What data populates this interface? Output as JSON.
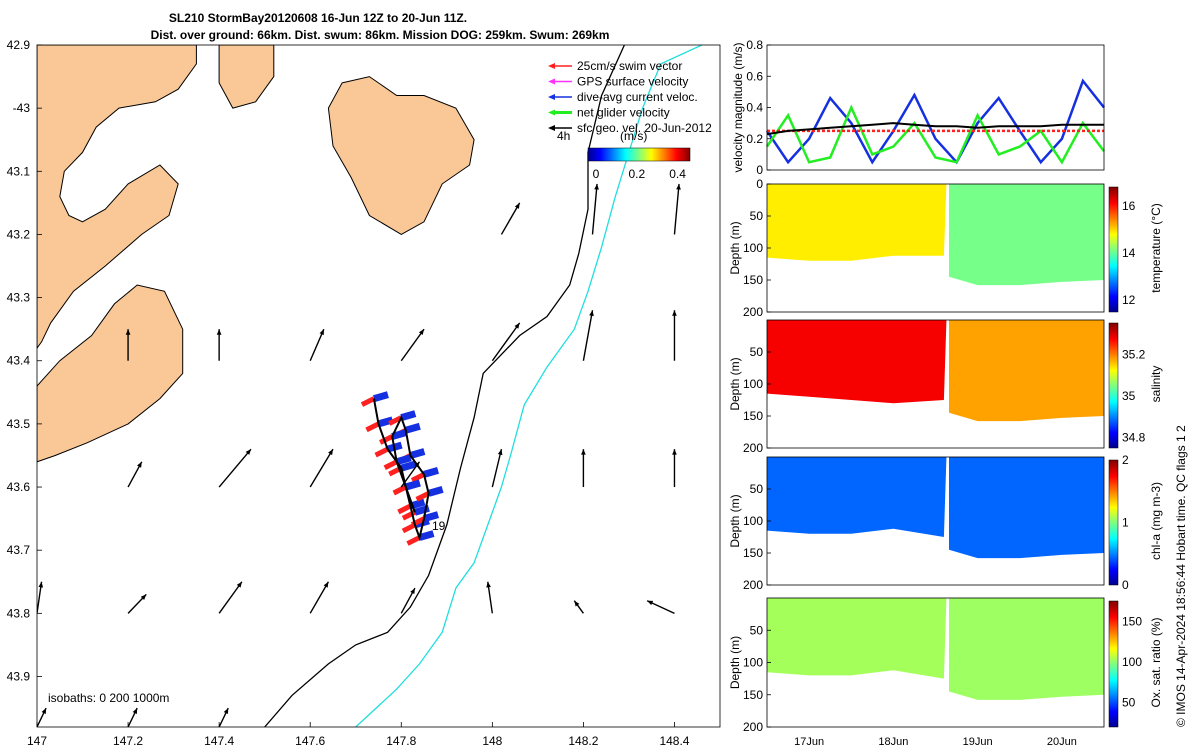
{
  "header": {
    "title_line1": "SL210 StormBay20120608 16-Jun 12Z to 20-Jun 11Z.",
    "title_line2": "Dist. over ground: 66km. Dist. swum: 86km. Mission DOG: 259km. Swum: 269km"
  },
  "colors": {
    "land": "#f9c896",
    "sea": "#ffffff",
    "isobath_200": "#000000",
    "isobath_1000": "#22dede",
    "swim_vector": "#ff2020",
    "gps_velocity": "#ff33ff",
    "dive_avg": "#1530e0",
    "net_velocity": "#22ee22",
    "sfc_geo": "#000000"
  },
  "map": {
    "type": "map",
    "xlim": [
      147.0,
      148.5
    ],
    "ylim": [
      -43.98,
      -42.9
    ],
    "xticks": [
      147,
      147.2,
      147.4,
      147.6,
      147.8,
      148,
      148.2,
      148.4
    ],
    "xtick_labels": [
      "147",
      "147.2",
      "147.4",
      "147.6",
      "147.8",
      "148",
      "148.2",
      "148.4"
    ],
    "yticks": [
      -42.9,
      -43,
      -43.1,
      -43.2,
      -43.3,
      -43.4,
      -43.5,
      -43.6,
      -43.7,
      -43.8,
      -43.9
    ],
    "ytick_labels": [
      "42.9",
      "-43",
      "43.1",
      "43.2",
      "43.3",
      "43.4",
      "43.5",
      "43.6",
      "43.7",
      "43.8",
      "43.9"
    ],
    "legend": {
      "position": "top-right",
      "items": [
        {
          "label": "25cm/s swim vector",
          "color": "#ff2020"
        },
        {
          "label": "GPS surface velocity",
          "color": "#ff33ff"
        },
        {
          "label": "dive-avg current veloc.",
          "color": "#1530e0"
        },
        {
          "label": "net glider velocity",
          "color": "#22ee22"
        },
        {
          "label": "sfc geo. vel. 20-Jun-2012",
          "color": "#000000"
        }
      ],
      "time_label": "4h"
    },
    "colorbar": {
      "label": "(m/s)",
      "ticks": [
        "0",
        "0.2",
        "0.4"
      ],
      "range": [
        0,
        0.5
      ]
    },
    "isobath_label": "isobaths: 0   200  1000m",
    "track_label": "19",
    "isobath_200": [
      [
        147.5,
        -43.98
      ],
      [
        147.56,
        -43.93
      ],
      [
        147.64,
        -43.88
      ],
      [
        147.7,
        -43.85
      ],
      [
        147.77,
        -43.83
      ],
      [
        147.82,
        -43.79
      ],
      [
        147.86,
        -43.74
      ],
      [
        147.9,
        -43.66
      ],
      [
        147.93,
        -43.57
      ],
      [
        147.96,
        -43.49
      ],
      [
        147.98,
        -43.42
      ],
      [
        148.06,
        -43.36
      ],
      [
        148.12,
        -43.33
      ],
      [
        148.17,
        -43.28
      ],
      [
        148.19,
        -43.23
      ],
      [
        148.21,
        -43.16
      ],
      [
        148.21,
        -43.07
      ],
      [
        148.24,
        -42.98
      ],
      [
        148.29,
        -42.9
      ]
    ],
    "isobath_1000": [
      [
        147.7,
        -43.98
      ],
      [
        147.79,
        -43.92
      ],
      [
        147.84,
        -43.88
      ],
      [
        147.89,
        -43.83
      ],
      [
        147.92,
        -43.76
      ],
      [
        147.96,
        -43.72
      ],
      [
        147.99,
        -43.66
      ],
      [
        148.02,
        -43.6
      ],
      [
        148.04,
        -43.55
      ],
      [
        148.07,
        -43.47
      ],
      [
        148.12,
        -43.41
      ],
      [
        148.18,
        -43.35
      ],
      [
        148.21,
        -43.29
      ],
      [
        148.24,
        -43.22
      ],
      [
        148.27,
        -43.14
      ],
      [
        148.3,
        -43.07
      ],
      [
        148.33,
        -43.0
      ],
      [
        148.37,
        -42.93
      ],
      [
        148.46,
        -42.9
      ]
    ],
    "land_polygons": [
      [
        [
          147.0,
          -42.9
        ],
        [
          147.35,
          -42.9
        ],
        [
          147.35,
          -42.93
        ],
        [
          147.31,
          -42.97
        ],
        [
          147.26,
          -42.99
        ],
        [
          147.18,
          -43.0
        ],
        [
          147.13,
          -43.03
        ],
        [
          147.1,
          -43.07
        ],
        [
          147.06,
          -43.1
        ],
        [
          147.05,
          -43.14
        ],
        [
          147.07,
          -43.17
        ],
        [
          147.1,
          -43.18
        ],
        [
          147.15,
          -43.16
        ],
        [
          147.2,
          -43.12
        ],
        [
          147.27,
          -43.09
        ],
        [
          147.31,
          -43.12
        ],
        [
          147.29,
          -43.17
        ],
        [
          147.23,
          -43.2
        ],
        [
          147.15,
          -43.25
        ],
        [
          147.08,
          -43.29
        ],
        [
          147.03,
          -43.34
        ],
        [
          147.01,
          -43.37
        ],
        [
          147.0,
          -43.38
        ]
      ],
      [
        [
          147.0,
          -43.44
        ],
        [
          147.05,
          -43.4
        ],
        [
          147.12,
          -43.36
        ],
        [
          147.17,
          -43.31
        ],
        [
          147.22,
          -43.28
        ],
        [
          147.28,
          -43.29
        ],
        [
          147.32,
          -43.35
        ],
        [
          147.32,
          -43.42
        ],
        [
          147.27,
          -43.46
        ],
        [
          147.2,
          -43.5
        ],
        [
          147.11,
          -43.53
        ],
        [
          147.04,
          -43.55
        ],
        [
          147.0,
          -43.56
        ]
      ],
      [
        [
          147.4,
          -42.9
        ],
        [
          147.52,
          -42.9
        ],
        [
          147.52,
          -42.95
        ],
        [
          147.48,
          -42.99
        ],
        [
          147.43,
          -43.0
        ],
        [
          147.4,
          -42.96
        ]
      ],
      [
        [
          147.67,
          -42.96
        ],
        [
          147.73,
          -42.95
        ],
        [
          147.79,
          -42.98
        ],
        [
          147.85,
          -42.98
        ],
        [
          147.92,
          -43.0
        ],
        [
          147.96,
          -43.05
        ],
        [
          147.95,
          -43.09
        ],
        [
          147.89,
          -43.12
        ],
        [
          147.85,
          -43.18
        ],
        [
          147.8,
          -43.2
        ],
        [
          147.73,
          -43.17
        ],
        [
          147.69,
          -43.11
        ],
        [
          147.65,
          -43.06
        ],
        [
          147.64,
          -43.0
        ]
      ]
    ],
    "quivers": [
      [
        147.2,
        -43.4,
        0.0,
        0.05
      ],
      [
        147.4,
        -43.4,
        0.0,
        0.05
      ],
      [
        147.6,
        -43.4,
        0.03,
        0.05
      ],
      [
        147.8,
        -43.4,
        0.05,
        0.05
      ],
      [
        148.0,
        -43.4,
        0.06,
        0.06
      ],
      [
        148.2,
        -43.4,
        0.02,
        0.08
      ],
      [
        148.4,
        -43.4,
        0.0,
        0.08
      ],
      [
        148.02,
        -43.2,
        0.04,
        0.05
      ],
      [
        148.22,
        -43.2,
        0.01,
        0.08
      ],
      [
        148.4,
        -43.2,
        0.01,
        0.08
      ],
      [
        147.2,
        -43.6,
        0.03,
        0.04
      ],
      [
        147.4,
        -43.6,
        0.07,
        0.06
      ],
      [
        147.6,
        -43.6,
        0.05,
        0.06
      ],
      [
        147.8,
        -43.6,
        0.04,
        0.04
      ],
      [
        148.0,
        -43.6,
        0.02,
        0.06
      ],
      [
        148.2,
        -43.6,
        0.0,
        0.06
      ],
      [
        148.4,
        -43.6,
        0.0,
        0.06
      ],
      [
        147.0,
        -43.8,
        0.01,
        0.05
      ],
      [
        147.2,
        -43.8,
        0.04,
        0.03
      ],
      [
        147.4,
        -43.8,
        0.05,
        0.05
      ],
      [
        147.6,
        -43.8,
        0.04,
        0.05
      ],
      [
        147.8,
        -43.8,
        0.03,
        0.04
      ],
      [
        148.0,
        -43.8,
        -0.01,
        0.05
      ],
      [
        148.2,
        -43.8,
        -0.02,
        0.02
      ],
      [
        148.4,
        -43.8,
        -0.06,
        0.02
      ],
      [
        147.2,
        -43.98,
        0.02,
        0.03
      ],
      [
        147.4,
        -43.98,
        0.02,
        0.03
      ],
      [
        147.0,
        -43.98,
        0.02,
        0.03
      ]
    ],
    "track": [
      [
        147.74,
        -43.46
      ],
      [
        147.75,
        -43.5
      ],
      [
        147.77,
        -43.54
      ],
      [
        147.8,
        -43.57
      ],
      [
        147.81,
        -43.6
      ],
      [
        147.82,
        -43.63
      ],
      [
        147.83,
        -43.66
      ],
      [
        147.84,
        -43.68
      ],
      [
        147.85,
        -43.65
      ],
      [
        147.86,
        -43.61
      ],
      [
        147.85,
        -43.58
      ],
      [
        147.82,
        -43.55
      ],
      [
        147.81,
        -43.51
      ],
      [
        147.8,
        -43.49
      ],
      [
        147.78,
        -43.52
      ],
      [
        147.79,
        -43.56
      ],
      [
        147.81,
        -43.6
      ],
      [
        147.83,
        -43.64
      ]
    ]
  },
  "chart_data": [
    {
      "type": "line",
      "name": "velocity",
      "ylabel": "velocity magnitude (m/s)",
      "ylim": [
        0,
        0.8
      ],
      "yticks": [
        0,
        0.2,
        0.4,
        0.6,
        0.8
      ],
      "x": [
        16.5,
        16.75,
        17.0,
        17.25,
        17.5,
        17.75,
        18.0,
        18.25,
        18.5,
        18.75,
        19.0,
        19.25,
        19.5,
        19.75,
        20.0,
        20.25,
        20.5
      ],
      "series": [
        {
          "color": "#1530e0",
          "values": [
            0.25,
            0.05,
            0.2,
            0.46,
            0.3,
            0.05,
            0.25,
            0.48,
            0.2,
            0.05,
            0.3,
            0.46,
            0.25,
            0.05,
            0.2,
            0.57,
            0.4
          ]
        },
        {
          "color": "#22ee22",
          "values": [
            0.15,
            0.35,
            0.05,
            0.08,
            0.4,
            0.1,
            0.15,
            0.3,
            0.08,
            0.05,
            0.35,
            0.1,
            0.15,
            0.25,
            0.05,
            0.3,
            0.12
          ]
        },
        {
          "color": "#ff2020",
          "values": [
            0.25,
            0.25,
            0.25,
            0.25,
            0.25,
            0.25,
            0.25,
            0.25,
            0.25,
            0.25,
            0.25,
            0.25,
            0.25,
            0.25,
            0.25,
            0.25,
            0.25
          ]
        },
        {
          "color": "#000000",
          "values": [
            0.23,
            0.25,
            0.26,
            0.27,
            0.28,
            0.29,
            0.3,
            0.29,
            0.28,
            0.28,
            0.27,
            0.28,
            0.28,
            0.28,
            0.29,
            0.29,
            0.29
          ]
        }
      ]
    },
    {
      "type": "heatmap",
      "name": "temperature",
      "ylabel": "Depth (m)",
      "ylim": [
        200,
        0
      ],
      "yticks": [
        0,
        50,
        100,
        150,
        200
      ],
      "colorbar_label": "temperature (°C)",
      "colorbar_ticks": [
        12,
        14,
        16
      ],
      "colorbar_range": [
        11.5,
        16.8
      ],
      "segments": [
        {
          "x_start": 16.5,
          "x_end": 18.63,
          "value": 14.9
        },
        {
          "x_start": 18.66,
          "x_end": 20.5,
          "value": 14.1
        }
      ],
      "bottom_depth": [
        [
          16.5,
          115
        ],
        [
          17.0,
          120
        ],
        [
          17.5,
          120
        ],
        [
          18.0,
          112
        ],
        [
          18.6,
          112
        ],
        [
          18.66,
          145
        ],
        [
          19.0,
          158
        ],
        [
          19.5,
          158
        ],
        [
          20.0,
          153
        ],
        [
          20.5,
          150
        ]
      ]
    },
    {
      "type": "heatmap",
      "name": "salinity",
      "ylabel": "Depth (m)",
      "ylim": [
        200,
        0
      ],
      "yticks": [
        50,
        100,
        150,
        200
      ],
      "colorbar_label": "salinity",
      "colorbar_ticks": [
        34.8,
        35,
        35.2
      ],
      "colorbar_range": [
        34.75,
        35.35
      ],
      "segments": [
        {
          "x_start": 16.5,
          "x_end": 18.63,
          "value": 35.28
        },
        {
          "x_start": 18.66,
          "x_end": 20.5,
          "value": 35.18
        }
      ],
      "bottom_depth": [
        [
          16.5,
          115
        ],
        [
          17.0,
          120
        ],
        [
          17.5,
          125
        ],
        [
          18.0,
          130
        ],
        [
          18.6,
          125
        ],
        [
          18.66,
          145
        ],
        [
          19.0,
          158
        ],
        [
          19.5,
          158
        ],
        [
          20.0,
          153
        ],
        [
          20.5,
          150
        ]
      ]
    },
    {
      "type": "heatmap",
      "name": "chl-a",
      "ylabel": "Depth (m)",
      "ylim": [
        200,
        0
      ],
      "yticks": [
        50,
        100,
        150,
        200
      ],
      "colorbar_label": "chl-a (mg m-3)",
      "colorbar_ticks": [
        0,
        1,
        2
      ],
      "colorbar_range": [
        0,
        2
      ],
      "segments": [
        {
          "x_start": 16.5,
          "x_end": 18.63,
          "value": 0.45
        },
        {
          "x_start": 18.66,
          "x_end": 20.5,
          "value": 0.45
        }
      ],
      "bottom_depth": [
        [
          16.5,
          115
        ],
        [
          17.0,
          120
        ],
        [
          17.5,
          120
        ],
        [
          18.0,
          112
        ],
        [
          18.6,
          125
        ],
        [
          18.66,
          145
        ],
        [
          19.0,
          158
        ],
        [
          19.5,
          158
        ],
        [
          20.0,
          153
        ],
        [
          20.5,
          150
        ]
      ]
    },
    {
      "type": "heatmap",
      "name": "oxygen",
      "ylabel": "Depth (m)",
      "ylim": [
        200,
        0
      ],
      "yticks": [
        50,
        100,
        150,
        200
      ],
      "xlabels": [
        "17Jun",
        "18Jun",
        "19Jun",
        "20Jun"
      ],
      "xticks": [
        17,
        18,
        19,
        20
      ],
      "colorbar_label": "Ox. sat. ratio (%)",
      "colorbar_ticks": [
        50,
        100,
        150
      ],
      "colorbar_range": [
        20,
        175
      ],
      "segments": [
        {
          "x_start": 16.5,
          "x_end": 18.63,
          "value": 103
        },
        {
          "x_start": 18.66,
          "x_end": 20.5,
          "value": 102
        }
      ],
      "bottom_depth": [
        [
          16.5,
          115
        ],
        [
          17.0,
          120
        ],
        [
          17.5,
          120
        ],
        [
          18.0,
          112
        ],
        [
          18.6,
          125
        ],
        [
          18.66,
          145
        ],
        [
          19.0,
          158
        ],
        [
          19.5,
          158
        ],
        [
          20.0,
          153
        ],
        [
          20.5,
          150
        ]
      ]
    }
  ],
  "credit": "© IMOS 14-Apr-2024 18:56:44 Hobart time. QC flags 1  2"
}
